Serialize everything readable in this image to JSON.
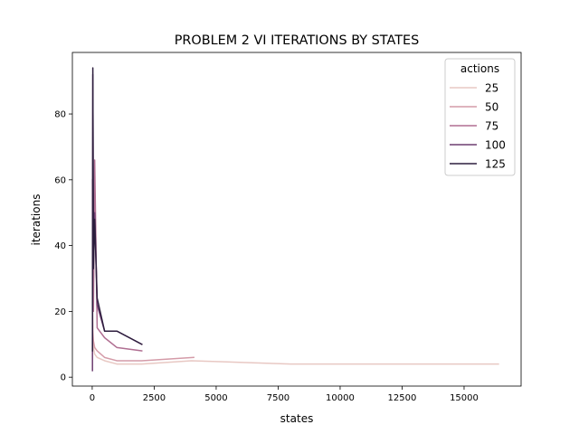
{
  "chart_data": {
    "type": "line",
    "title": "PROBLEM 2 VI ITERATIONS BY STATES",
    "xlabel": "states",
    "ylabel": "iterations",
    "xlim": [
      -800,
      17300
    ],
    "ylim": [
      -2.7,
      98.7
    ],
    "xticks": [
      0,
      2500,
      5000,
      7500,
      10000,
      12500,
      15000
    ],
    "xtick_labels": [
      "0",
      "2500",
      "5000",
      "7500",
      "10000",
      "12500",
      "15000"
    ],
    "yticks": [
      0,
      20,
      40,
      60,
      80
    ],
    "ytick_labels": [
      "0",
      "20",
      "40",
      "60",
      "80"
    ],
    "grid": false,
    "legend": {
      "title": "actions",
      "placement": "upper right"
    },
    "series": [
      {
        "name": "25",
        "color": "#e8c8c3",
        "x": [
          10,
          25,
          50,
          100,
          200,
          500,
          1000,
          2000,
          4000,
          8000,
          16384
        ],
        "y": [
          23,
          12,
          9,
          7,
          6,
          5,
          4,
          4,
          5,
          4,
          4
        ]
      },
      {
        "name": "50",
        "color": "#d49ba8",
        "x": [
          10,
          25,
          50,
          100,
          200,
          500,
          1000,
          2000,
          4096
        ],
        "y": [
          22,
          14,
          11,
          9,
          8,
          6,
          5,
          5,
          6
        ]
      },
      {
        "name": "75",
        "color": "#b06f92",
        "x": [
          10,
          25,
          50,
          100,
          200,
          500,
          1000,
          2000
        ],
        "y": [
          60,
          30,
          20,
          66,
          15,
          12,
          9,
          8
        ]
      },
      {
        "name": "100",
        "color": "#6d3e70",
        "x": [
          10,
          25,
          50,
          100,
          200,
          500,
          1000,
          2000
        ],
        "y": [
          2,
          92,
          40,
          50,
          22,
          14,
          14,
          10
        ]
      },
      {
        "name": "125",
        "color": "#2d1e3e",
        "x": [
          10,
          25,
          50,
          100,
          200,
          500,
          1000,
          2000
        ],
        "y": [
          8,
          94,
          33,
          48,
          24,
          14,
          14,
          10
        ]
      }
    ]
  }
}
